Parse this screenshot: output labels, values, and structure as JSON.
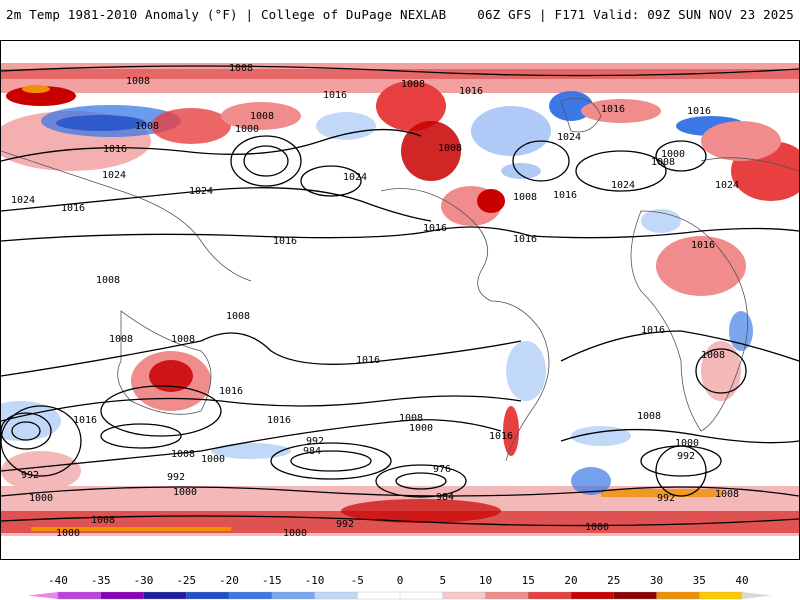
{
  "header": {
    "title": "2m Temp 1981-2010 Anomaly (°F) | College of DuPage NEXLAB",
    "model_info": "06Z GFS | F171 Valid: 09Z SUN NOV 23 2025"
  },
  "colorbar": {
    "ticks": [
      "-40",
      "-35",
      "-30",
      "-25",
      "-20",
      "-15",
      "-10",
      "-5",
      "0",
      "5",
      "10",
      "15",
      "20",
      "25",
      "30",
      "35",
      "40"
    ],
    "colors": [
      "#ee82ee",
      "#c040e0",
      "#8a00b8",
      "#1e1e9e",
      "#1f4fc8",
      "#3b78e6",
      "#7aa6f0",
      "#c2d8f8",
      "#ffffff",
      "#ffffff",
      "#f8c8c8",
      "#f08c8c",
      "#e84040",
      "#c80000",
      "#8c0000",
      "#f09000",
      "#ffc800"
    ]
  },
  "contour_labels": [
    {
      "text": "1008"
    },
    {
      "text": "1008"
    },
    {
      "text": "1016"
    },
    {
      "text": "1008"
    },
    {
      "text": "1016"
    },
    {
      "text": "1008"
    },
    {
      "text": "1016"
    },
    {
      "text": "1016"
    },
    {
      "text": "1024"
    },
    {
      "text": "1008"
    },
    {
      "text": "1000"
    },
    {
      "text": "1008"
    },
    {
      "text": "1016"
    },
    {
      "text": "1024"
    },
    {
      "text": "1024"
    },
    {
      "text": "1024"
    },
    {
      "text": "1016"
    },
    {
      "text": "1024"
    },
    {
      "text": "1008"
    },
    {
      "text": "1016"
    },
    {
      "text": "1016"
    },
    {
      "text": "1016"
    },
    {
      "text": "1024"
    },
    {
      "text": "1000"
    },
    {
      "text": "1008"
    },
    {
      "text": "1024"
    },
    {
      "text": "1016"
    },
    {
      "text": "1008"
    },
    {
      "text": "1008"
    },
    {
      "text": "1008"
    },
    {
      "text": "1016"
    },
    {
      "text": "1008"
    },
    {
      "text": "1016"
    },
    {
      "text": "1016"
    },
    {
      "text": "1016"
    },
    {
      "text": "1016"
    },
    {
      "text": "1008"
    },
    {
      "text": "1000"
    },
    {
      "text": "1016"
    },
    {
      "text": "992"
    },
    {
      "text": "1008"
    },
    {
      "text": "1000"
    },
    {
      "text": "992"
    },
    {
      "text": "984"
    },
    {
      "text": "1000"
    },
    {
      "text": "992"
    },
    {
      "text": "1000"
    },
    {
      "text": "1008"
    },
    {
      "text": "976"
    },
    {
      "text": "984"
    },
    {
      "text": "992"
    },
    {
      "text": "1008"
    },
    {
      "text": "1000"
    },
    {
      "text": "1000"
    },
    {
      "text": "1000"
    },
    {
      "text": "1016"
    },
    {
      "text": "992"
    },
    {
      "text": "1008"
    },
    {
      "text": "1000"
    },
    {
      "text": "1008"
    },
    {
      "text": "992"
    }
  ]
}
